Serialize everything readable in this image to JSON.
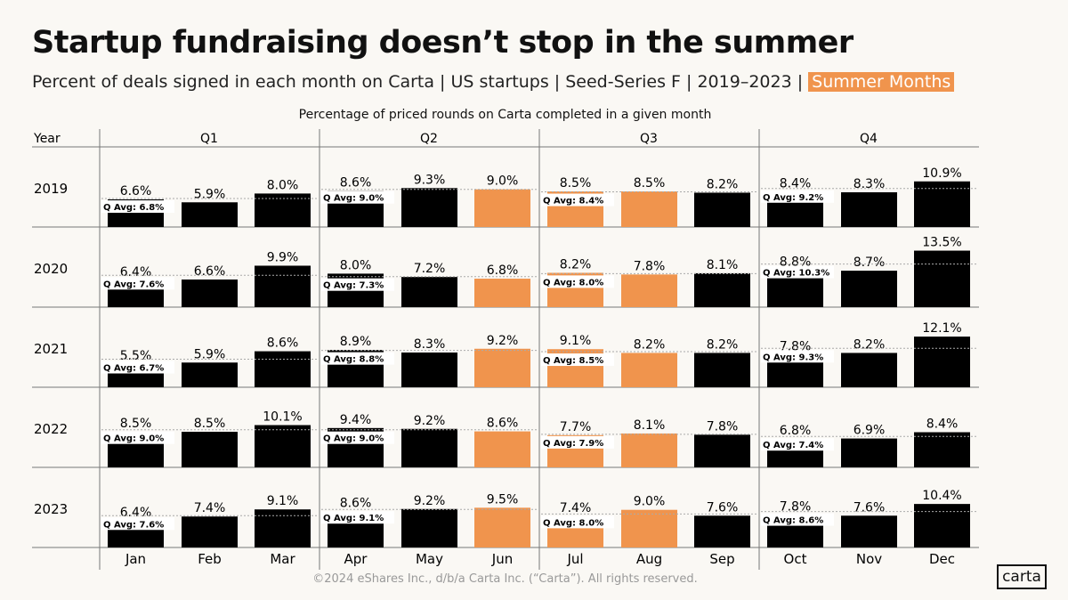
{
  "title": "Startup fundraising doesn’t stop in the summer",
  "subtitle": "Percent of deals signed in each month on Carta | US startups | Seed-Series F | 2019–2023 |",
  "summer_label": "Summer Months",
  "footer": "©2024 eShares Inc., d/b/a Carta Inc. (“Carta”). All rights reserved.",
  "logo": "carta",
  "colors": {
    "regular": "#000000",
    "summer": "#f0944d",
    "background": "#faf8f4"
  },
  "chart_data": {
    "type": "bar",
    "title": "Percentage of priced rounds on Carta completed in a given month",
    "row_header": "Year",
    "quarters": [
      "Q1",
      "Q2",
      "Q3",
      "Q4"
    ],
    "categories": [
      "Jan",
      "Feb",
      "Mar",
      "Apr",
      "May",
      "Jun",
      "Jul",
      "Aug",
      "Sep",
      "Oct",
      "Nov",
      "Dec"
    ],
    "summer_months": [
      "Jun",
      "Jul",
      "Aug"
    ],
    "unit": "%",
    "qavg_prefix": "Q Avg:",
    "series": [
      {
        "name": "2019",
        "values": [
          6.6,
          5.9,
          8.0,
          8.6,
          9.3,
          9.0,
          8.5,
          8.5,
          8.2,
          8.4,
          8.3,
          10.9
        ],
        "q_avg": [
          6.8,
          9.0,
          8.4,
          9.2
        ]
      },
      {
        "name": "2020",
        "values": [
          6.4,
          6.6,
          9.9,
          8.0,
          7.2,
          6.8,
          8.2,
          7.8,
          8.1,
          8.8,
          8.7,
          13.5
        ],
        "q_avg": [
          7.6,
          7.3,
          8.0,
          10.3
        ]
      },
      {
        "name": "2021",
        "values": [
          5.5,
          5.9,
          8.6,
          8.9,
          8.3,
          9.2,
          9.1,
          8.2,
          8.2,
          7.8,
          8.2,
          12.1
        ],
        "q_avg": [
          6.7,
          8.8,
          8.5,
          9.3
        ]
      },
      {
        "name": "2022",
        "values": [
          8.5,
          8.5,
          10.1,
          9.4,
          9.2,
          8.6,
          7.7,
          8.1,
          7.8,
          6.8,
          6.9,
          8.4
        ],
        "q_avg": [
          9.0,
          9.0,
          7.9,
          7.4
        ]
      },
      {
        "name": "2023",
        "values": [
          6.4,
          7.4,
          9.1,
          8.6,
          9.2,
          9.5,
          7.4,
          9.0,
          7.6,
          7.8,
          7.6,
          10.4
        ],
        "q_avg": [
          7.6,
          9.1,
          8.0,
          8.6
        ]
      }
    ]
  }
}
